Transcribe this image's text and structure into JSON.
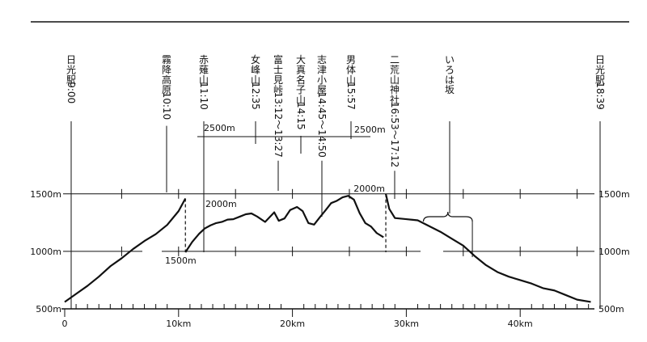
{
  "chart_data": {
    "type": "line",
    "title": "",
    "xlabel": "",
    "ylabel": "",
    "x_unit": "km",
    "y_unit": "m",
    "xlim": [
      0,
      46.5
    ],
    "ylim": [
      500,
      1500
    ],
    "x_ticks": [
      0,
      10,
      20,
      30,
      40
    ],
    "x_tick_labels": [
      "0",
      "10km",
      "20km",
      "30km",
      "40km"
    ],
    "y_ticks_left": [
      {
        "value": 500,
        "label": "500m"
      },
      {
        "value": 1000,
        "label": "1000m"
      },
      {
        "value": 1500,
        "label": "1500m"
      }
    ],
    "y_ticks_right": [
      {
        "value": 500,
        "label": "500m"
      },
      {
        "value": 1000,
        "label": "1000m"
      },
      {
        "value": 1500,
        "label": "1500m"
      }
    ],
    "upper_axis_labels": [
      {
        "text": "2500m",
        "x": 13,
        "place": "left"
      },
      {
        "text": "2500m",
        "x": 25.5,
        "place": "right"
      },
      {
        "text": "2000m",
        "x": 12.5,
        "place": "below-left"
      },
      {
        "text": "2000m",
        "x": 28.2,
        "place": "left"
      },
      {
        "text": "1500m",
        "x": 10.6,
        "place": "below-left"
      }
    ],
    "series": [
      {
        "segment": "lower-left",
        "x": [
          0,
          1,
          2,
          3,
          4,
          5,
          6,
          7,
          8,
          9,
          10,
          10.6
        ],
        "y": [
          560,
          630,
          700,
          780,
          870,
          940,
          1020,
          1090,
          1150,
          1230,
          1350,
          1460
        ]
      },
      {
        "segment": "upper",
        "x": [
          10.6,
          11.2,
          11.8,
          12.3,
          12.8,
          13.3,
          13.8,
          14.3,
          14.8,
          15.4,
          15.9,
          16.4,
          16.9,
          17.6,
          18.4,
          18.8,
          19.3,
          19.8,
          20.4,
          20.9,
          21.4,
          21.9,
          22.4,
          22.9,
          23.4,
          23.9,
          24.4,
          24.9,
          25.4,
          25.9,
          26.4,
          26.9,
          27.4,
          28.0
        ],
        "y": [
          1000,
          1270,
          1480,
          1620,
          1700,
          1760,
          1790,
          1850,
          1860,
          1930,
          1990,
          2010,
          1930,
          1790,
          2040,
          1820,
          1880,
          2100,
          2180,
          2070,
          1760,
          1720,
          1910,
          2090,
          2280,
          2340,
          2430,
          2470,
          2370,
          2020,
          1760,
          1670,
          1500,
          1390
        ]
      },
      {
        "segment": "lower-right",
        "x": [
          28.2,
          28.5,
          29,
          30,
          31,
          32,
          33,
          34,
          35,
          36,
          37,
          38,
          39,
          40,
          41,
          42,
          43,
          44,
          45,
          46.2
        ],
        "y": [
          1500,
          1370,
          1290,
          1280,
          1270,
          1220,
          1170,
          1110,
          1050,
          960,
          880,
          820,
          780,
          750,
          720,
          680,
          660,
          620,
          580,
          560
        ]
      }
    ],
    "annotations": [
      {
        "lines": [
          "日",
          "光",
          "駅",
          "9:00"
        ],
        "x": 0
      },
      {
        "lines": [
          "霧",
          "降",
          "高",
          "原",
          "10:10"
        ],
        "x": 8.7
      },
      {
        "lines": [
          "赤",
          "薙",
          "山",
          "11:10"
        ],
        "x": 12.2
      },
      {
        "lines": [
          "女",
          "峰",
          "山",
          "12:35"
        ],
        "x": 16.2
      },
      {
        "lines": [
          "富",
          "士",
          "見",
          "峠",
          "13:12〜13:27"
        ],
        "x": 18.1
      },
      {
        "lines": [
          "大",
          "真",
          "名",
          "子",
          "山",
          "14:15"
        ],
        "x": 20.0
      },
      {
        "lines": [
          "志",
          "津",
          "小",
          "屋",
          "14:45〜14:50"
        ],
        "x": 22.1
      },
      {
        "lines": [
          "男",
          "体",
          "山",
          "15:57"
        ],
        "x": 24.6
      },
      {
        "lines": [
          "二",
          "荒",
          "山",
          "神",
          "社",
          "16:53〜17:12"
        ],
        "x": 28.0
      },
      {
        "lines": [
          "い",
          "ろ",
          "は",
          "坂"
        ],
        "x": 33.4
      },
      {
        "lines": [
          "日",
          "光",
          "駅",
          "18:39"
        ],
        "x": 46.3
      }
    ]
  }
}
